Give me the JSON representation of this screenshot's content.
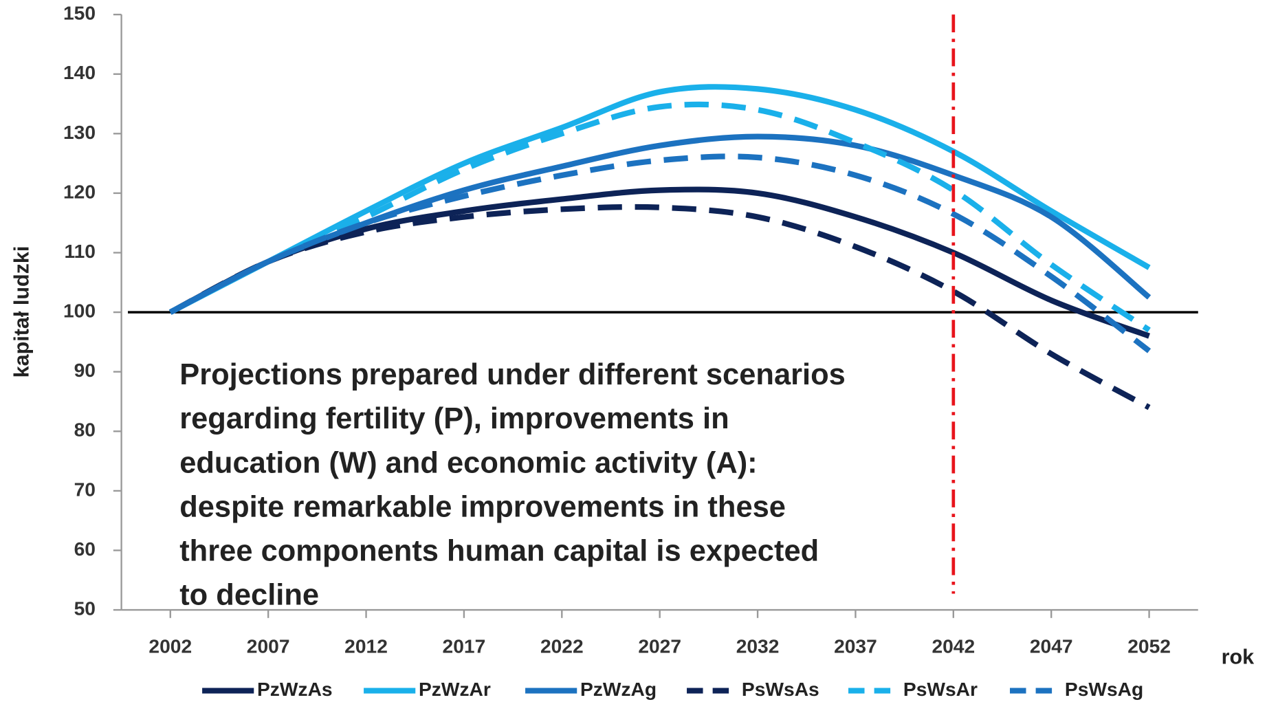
{
  "chart_data": {
    "type": "line",
    "y_label": "kapitał ludzki",
    "x_label": "rok",
    "annotation": [
      "Projections prepared under different scenarios",
      "regarding fertility (P), improvements in",
      "education (W) and economic activity  (A):",
      "despite remarkable improvements in these",
      "three components human capital is expected",
      "to decline"
    ],
    "x": [
      2002,
      2007,
      2012,
      2017,
      2022,
      2027,
      2032,
      2037,
      2042,
      2047,
      2052
    ],
    "xlim": [
      1999.5,
      2054.5
    ],
    "xticks": [
      2002,
      2007,
      2012,
      2017,
      2022,
      2027,
      2032,
      2037,
      2042,
      2047,
      2052
    ],
    "ylim": [
      50,
      150
    ],
    "yticks": [
      50,
      60,
      70,
      80,
      90,
      100,
      110,
      120,
      130,
      140,
      150
    ],
    "reference_y": 100,
    "reference_x": 2042,
    "series": [
      {
        "name": "PzWzAs",
        "color": "#0d2357",
        "dashed": false,
        "values": [
          100,
          108.5,
          114,
          117,
          119,
          120.5,
          120,
          116,
          110,
          102,
          96
        ]
      },
      {
        "name": "PzWzAr",
        "color": "#1ab0ea",
        "dashed": false,
        "values": [
          100,
          108.5,
          117,
          125,
          131,
          137,
          137.5,
          134,
          127,
          117,
          107.5
        ]
      },
      {
        "name": "PzWzAg",
        "color": "#1c72c0",
        "dashed": false,
        "values": [
          100,
          108.5,
          115,
          120.5,
          124.5,
          128,
          129.5,
          128,
          123,
          116,
          102.5
        ]
      },
      {
        "name": "PsWsAs",
        "color": "#0d2357",
        "dashed": true,
        "values": [
          100,
          108.5,
          113.5,
          116,
          117.3,
          117.6,
          116,
          111,
          103.5,
          93,
          84
        ]
      },
      {
        "name": "PsWsAr",
        "color": "#1ab0ea",
        "dashed": true,
        "values": [
          100,
          108.5,
          116,
          124,
          130,
          134.5,
          134,
          128.5,
          120.5,
          108,
          97
        ]
      },
      {
        "name": "PsWsAg",
        "color": "#1c72c0",
        "dashed": true,
        "values": [
          100,
          108.5,
          115,
          119.5,
          123,
          125.5,
          126,
          123,
          116.5,
          106,
          93.5
        ]
      }
    ]
  }
}
